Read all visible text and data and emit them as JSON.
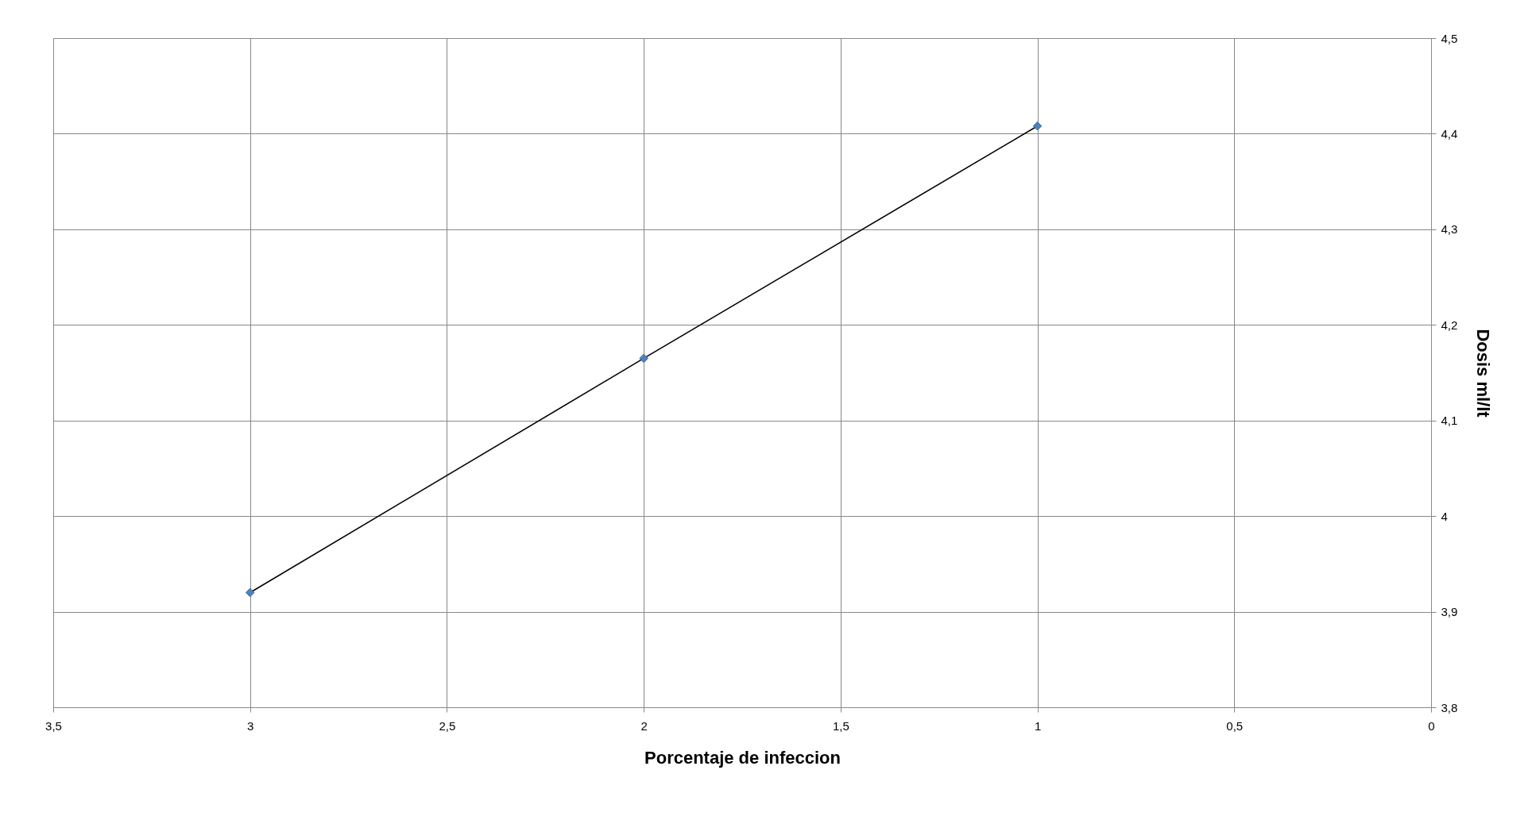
{
  "chart_data": {
    "type": "line",
    "xlabel": "Porcentaje de infeccion",
    "ylabel": "Dosis  ml/lt",
    "x": [
      3,
      2,
      1
    ],
    "series": [
      {
        "color": "#4f81bd",
        "values": [
          3.92,
          4.165,
          4.408
        ]
      }
    ],
    "xlim": [
      3.5,
      0
    ],
    "xticks": [
      {
        "value": 3.5,
        "label": "3,5"
      },
      3,
      {
        "value": 2.5,
        "label": "2,5"
      },
      2,
      {
        "value": 1.5,
        "label": "1,5"
      },
      1,
      {
        "value": 0.5,
        "label": "0,5"
      },
      0
    ],
    "ylim": [
      3.8,
      4.5
    ],
    "yticks": [
      {
        "value": 3.8,
        "label": "3,8"
      },
      {
        "value": 3.9,
        "label": "3,9"
      },
      4,
      {
        "value": 4.1,
        "label": "4,1"
      },
      {
        "value": 4.2,
        "label": "4,2"
      },
      {
        "value": 4.3,
        "label": "4,3"
      },
      {
        "value": 4.4,
        "label": "4,4"
      },
      {
        "value": 4.5,
        "label": "4,5"
      }
    ],
    "grid": true,
    "marker": "diamond",
    "line_style": "solid"
  }
}
